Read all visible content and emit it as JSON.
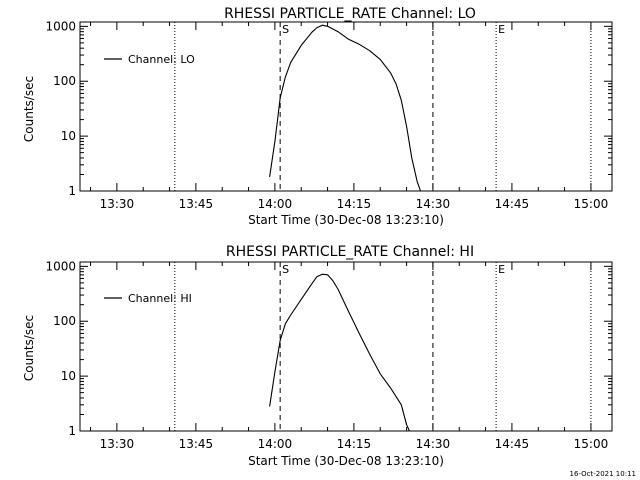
{
  "footer": {
    "timestamp": "16-Oct-2021 10:11"
  },
  "chart_data": [
    {
      "type": "line",
      "title": "RHESSI PARTICLE_RATE Channel: LO",
      "xlabel": "Start Time (30-Dec-08 13:23:10)",
      "ylabel": "Counts/sec",
      "xlim": [
        "13:23",
        "15:04"
      ],
      "ylim": [
        1,
        1200
      ],
      "y_scale": "log",
      "x_ticks": [
        "13:30",
        "13:45",
        "14:00",
        "14:15",
        "14:30",
        "14:45",
        "15:00"
      ],
      "y_ticks": [
        "1",
        "10",
        "100",
        "1000"
      ],
      "legend": {
        "label": "Channel: LO",
        "position": "top-left"
      },
      "markers": [
        {
          "time": "13:41",
          "style": "dotted",
          "label": ""
        },
        {
          "time": "14:01",
          "style": "dashed",
          "label": "S"
        },
        {
          "time": "14:30",
          "style": "dashed",
          "label": ""
        },
        {
          "time": "14:42",
          "style": "dotted",
          "label": "E"
        },
        {
          "time": "15:00",
          "style": "dotted",
          "label": ""
        }
      ],
      "series": [
        {
          "name": "Channel: LO",
          "x": [
            "13:59",
            "14:00",
            "14:01",
            "14:02",
            "14:03",
            "14:05",
            "14:07",
            "14:08",
            "14:09",
            "14:10",
            "14:12",
            "14:14",
            "14:16",
            "14:18",
            "14:20",
            "14:22",
            "14:23",
            "14:24",
            "14:25",
            "14:26",
            "14:27",
            "14:28"
          ],
          "y": [
            1.8,
            8,
            50,
            120,
            220,
            450,
            780,
            950,
            1050,
            1000,
            800,
            580,
            470,
            360,
            250,
            140,
            90,
            45,
            15,
            4,
            1.5,
            0.8
          ]
        }
      ]
    },
    {
      "type": "line",
      "title": "RHESSI PARTICLE_RATE Channel: HI",
      "xlabel": "Start Time (30-Dec-08 13:23:10)",
      "ylabel": "Counts/sec",
      "xlim": [
        "13:23",
        "15:04"
      ],
      "ylim": [
        1,
        1200
      ],
      "y_scale": "log",
      "x_ticks": [
        "13:30",
        "13:45",
        "14:00",
        "14:15",
        "14:30",
        "14:45",
        "15:00"
      ],
      "y_ticks": [
        "1",
        "10",
        "100",
        "1000"
      ],
      "legend": {
        "label": "Channel: HI",
        "position": "top-left"
      },
      "markers": [
        {
          "time": "13:41",
          "style": "dotted",
          "label": ""
        },
        {
          "time": "14:01",
          "style": "dashed",
          "label": "S"
        },
        {
          "time": "14:30",
          "style": "dashed",
          "label": ""
        },
        {
          "time": "14:42",
          "style": "dotted",
          "label": "E"
        },
        {
          "time": "15:00",
          "style": "dotted",
          "label": ""
        }
      ],
      "series": [
        {
          "name": "Channel: HI",
          "x": [
            "13:59",
            "14:00",
            "14:01",
            "14:02",
            "14:03",
            "14:05",
            "14:07",
            "14:08",
            "14:09",
            "14:10",
            "14:11",
            "14:12",
            "14:14",
            "14:16",
            "14:18",
            "14:20",
            "14:22",
            "14:24",
            "14:25",
            "14:26"
          ],
          "y": [
            2.8,
            12,
            45,
            90,
            130,
            250,
            480,
            650,
            720,
            700,
            550,
            380,
            150,
            60,
            25,
            11,
            6,
            3,
            1.3,
            0.8
          ]
        }
      ]
    }
  ]
}
